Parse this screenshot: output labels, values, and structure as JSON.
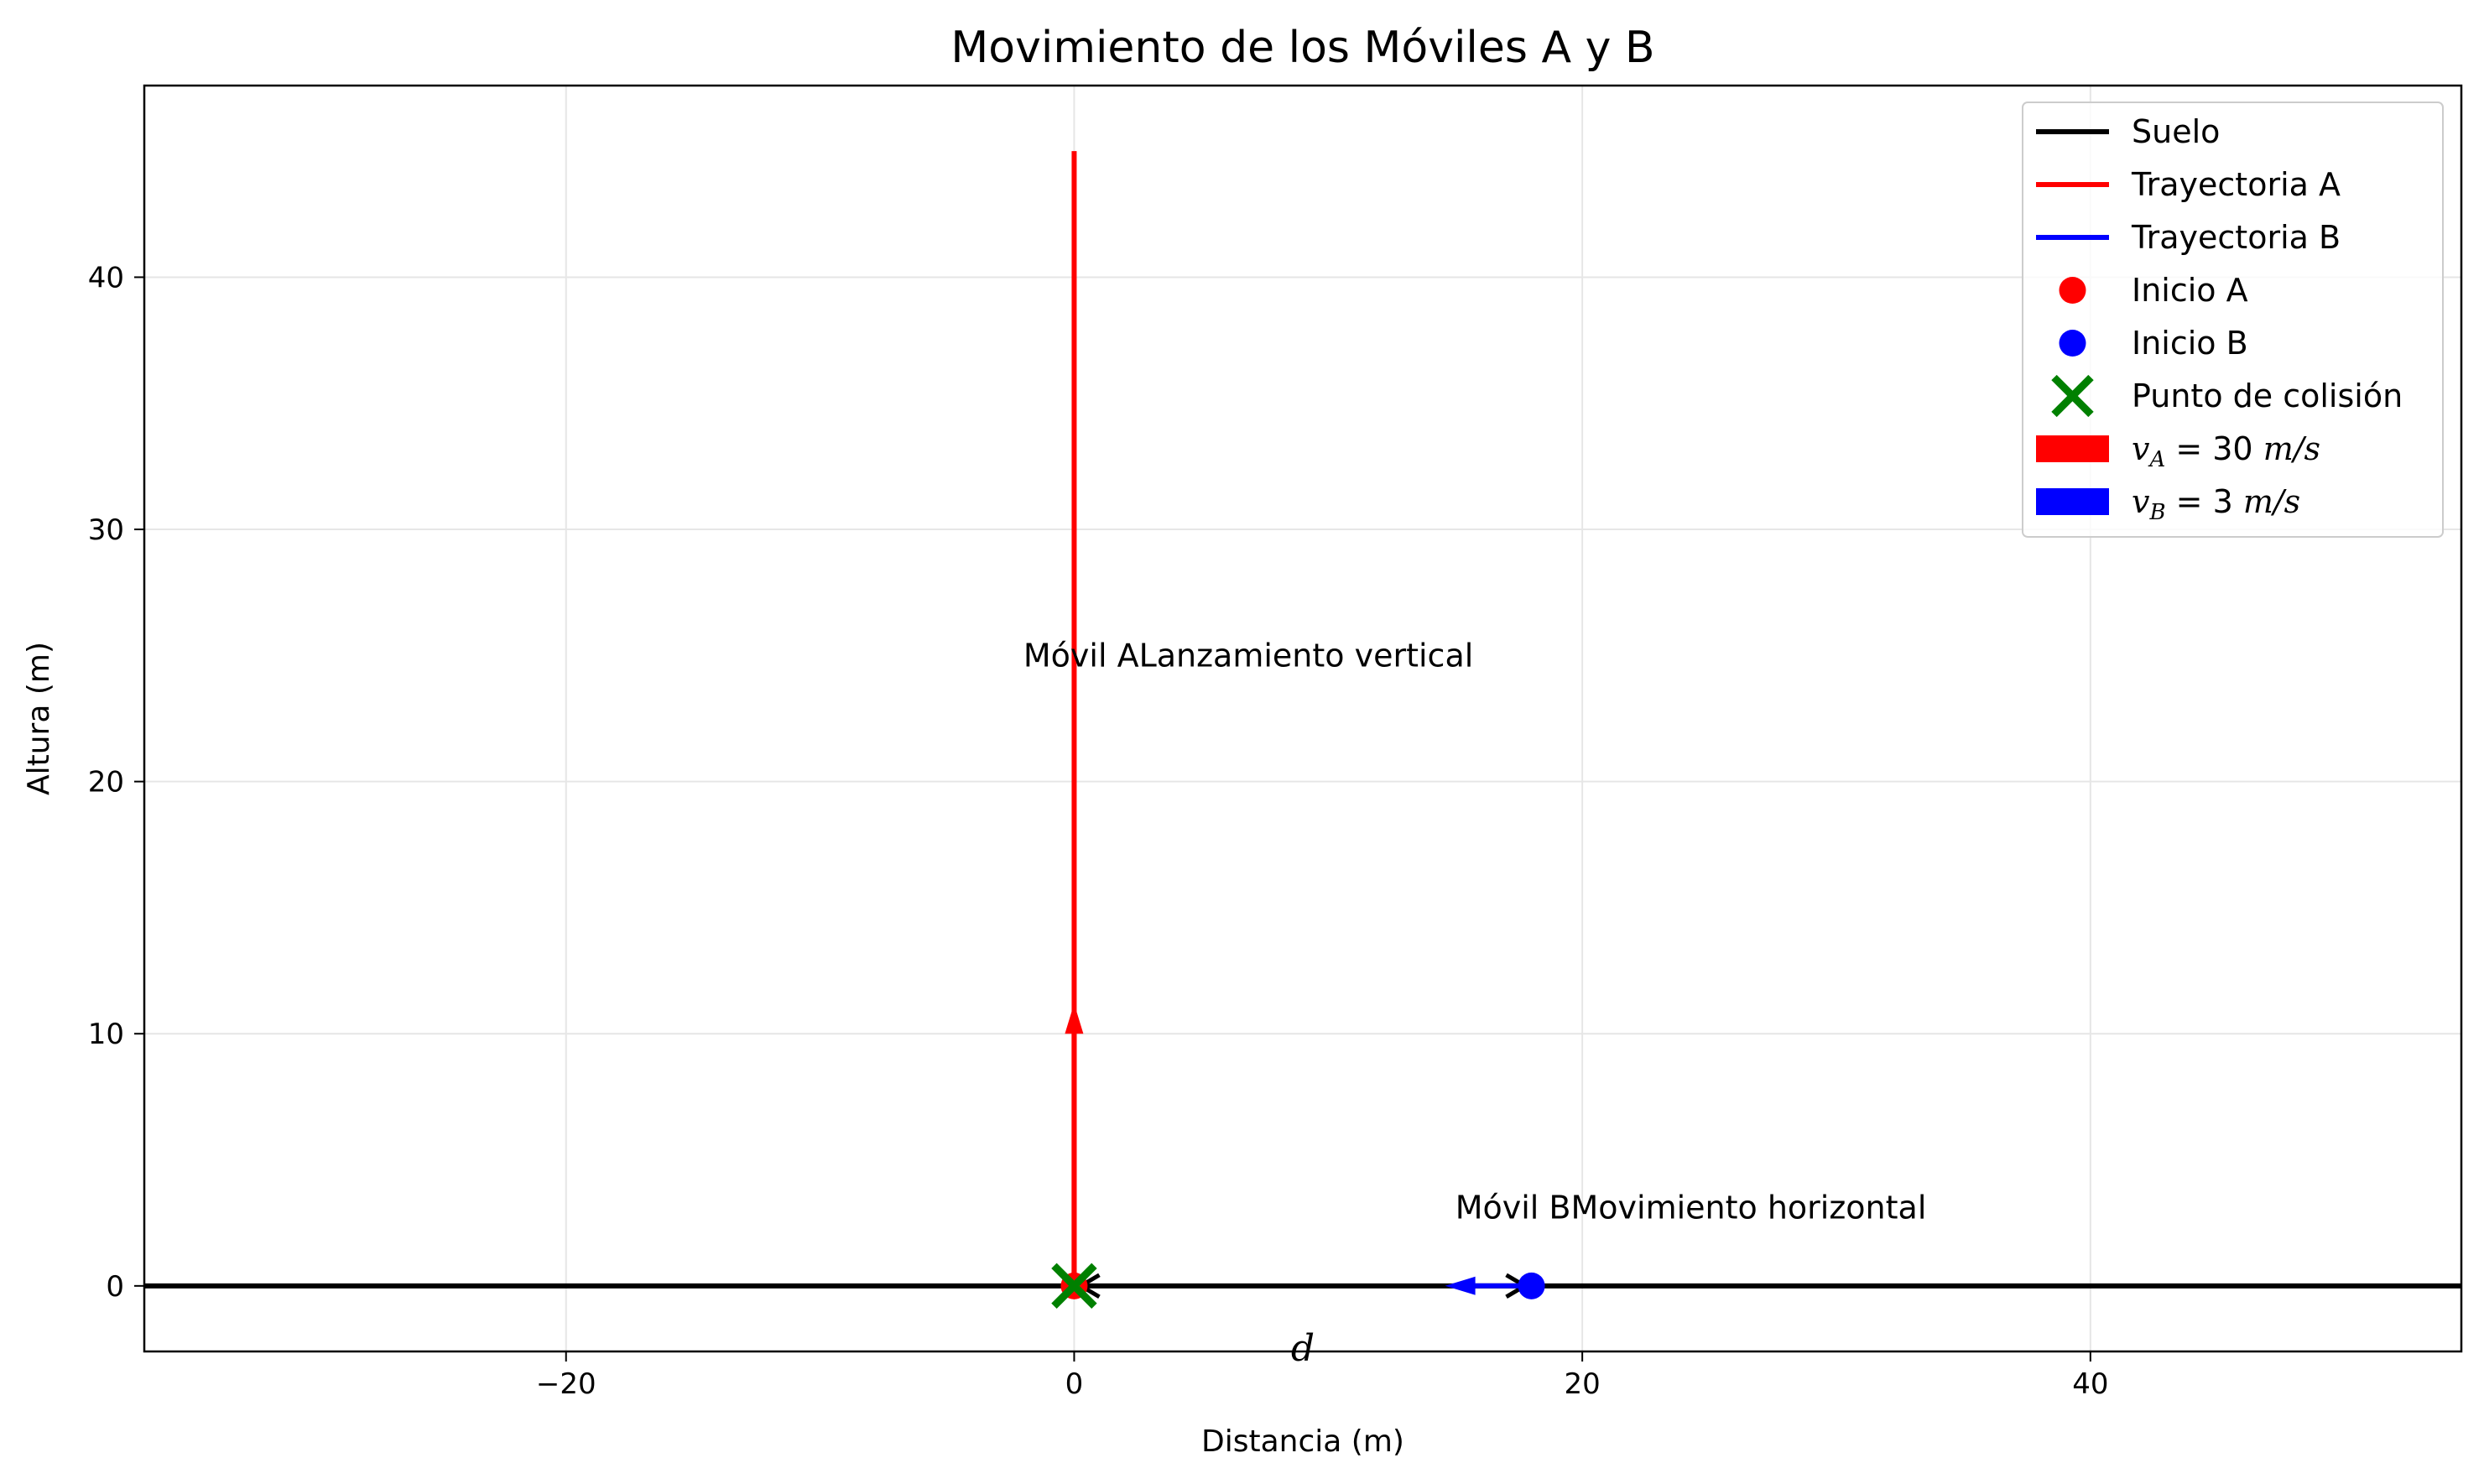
{
  "chart_data": {
    "type": "line",
    "title": "Movimiento de los Móviles A y B",
    "xlabel": "Distancia (m)",
    "ylabel": "Altura (m)",
    "xlim": [
      -36.6,
      54.6
    ],
    "ylim": [
      -2.6,
      47.6
    ],
    "xticks": [
      -20,
      0,
      20,
      40
    ],
    "xtick_labels": [
      "−20",
      "0",
      "20",
      "40"
    ],
    "yticks": [
      0,
      10,
      20,
      30,
      40
    ],
    "ytick_labels": [
      "0",
      "10",
      "20",
      "30",
      "40"
    ],
    "grid": true,
    "legend_position": "top-right",
    "colors": {
      "ground": "#000000",
      "trajectory_a": "#ff0000",
      "trajectory_b": "#0000ff",
      "start_a": "#ff0000",
      "start_b": "#0000ff",
      "collision": "#008000",
      "velocity_a": "#ff0000",
      "velocity_b": "#0000ff",
      "grid": "#e6e6e6"
    },
    "series": [
      {
        "name": "Suelo",
        "kind": "line",
        "x": [
          -36.6,
          54.6
        ],
        "y": [
          0,
          0
        ]
      },
      {
        "name": "Trayectoria A",
        "kind": "line",
        "x": [
          0,
          0
        ],
        "y": [
          0,
          45
        ]
      },
      {
        "name": "Trayectoria B",
        "kind": "line",
        "x": [
          18,
          0
        ],
        "y": [
          0,
          0
        ]
      },
      {
        "name": "Inicio A",
        "kind": "marker",
        "x": [
          0
        ],
        "y": [
          0
        ]
      },
      {
        "name": "Inicio B",
        "kind": "marker",
        "x": [
          18
        ],
        "y": [
          0
        ]
      },
      {
        "name": "Punto de colisión",
        "kind": "marker",
        "x": [
          0
        ],
        "y": [
          0
        ]
      }
    ],
    "velocity_arrows": [
      {
        "name": "v_A = 30 m/s",
        "x": 0,
        "y": 0,
        "dx": 0,
        "dy": 11.2
      },
      {
        "name": "v_B = 3 m/s",
        "x": 18,
        "y": 0,
        "dx": -3.4,
        "dy": 0
      }
    ],
    "distance_marker": {
      "label": "d",
      "x_from": 0,
      "x_to": 18,
      "y": 0,
      "label_x": 9,
      "label_y": -2.5
    },
    "annotations": [
      {
        "text": "Móvil ALanzamiento vertical",
        "x": -2,
        "y": 25
      },
      {
        "text": "Móvil BMovimiento horizontal",
        "x": 15,
        "y": 3.1
      }
    ],
    "legend": {
      "entries": [
        {
          "label": "Suelo",
          "kind": "line",
          "color": "#000000"
        },
        {
          "label": "Trayectoria A",
          "kind": "line",
          "color": "#ff0000"
        },
        {
          "label": "Trayectoria B",
          "kind": "line",
          "color": "#0000ff"
        },
        {
          "label": "Inicio A",
          "kind": "dot",
          "color": "#ff0000"
        },
        {
          "label": "Inicio B",
          "kind": "dot",
          "color": "#0000ff"
        },
        {
          "label": "Punto de colisión",
          "kind": "cross",
          "color": "#008000"
        },
        {
          "label": "v_A = 30 m/s",
          "kind": "patch",
          "color": "#ff0000",
          "var": "v",
          "sub": "A",
          "value": "= 30",
          "unit": "m/s"
        },
        {
          "label": "v_B = 3 m/s",
          "kind": "patch",
          "color": "#0000ff",
          "var": "v",
          "sub": "B",
          "value": "= 3",
          "unit": "m/s"
        }
      ]
    }
  }
}
